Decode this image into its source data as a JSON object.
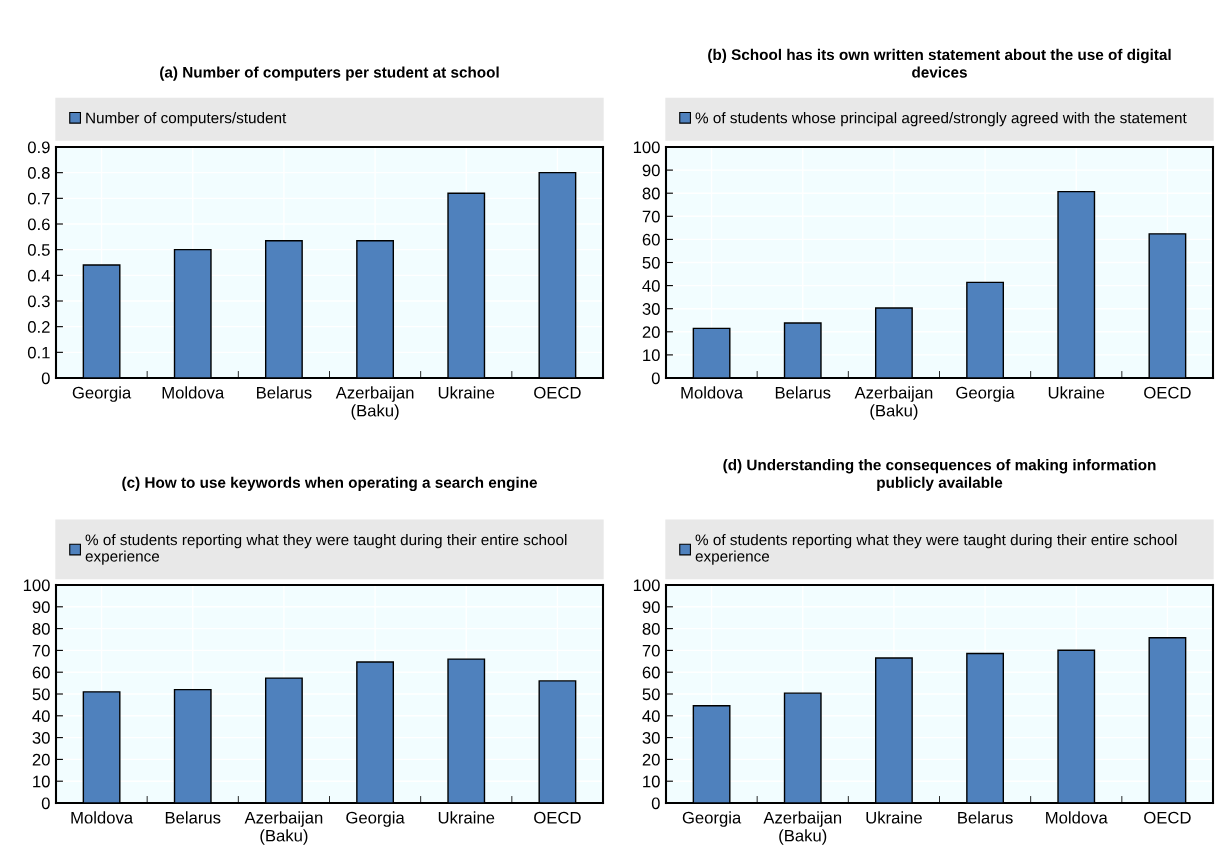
{
  "chart_data": [
    {
      "type": "bar",
      "title": "(a) Number of computers per student at school",
      "categories": [
        "Georgia",
        "Moldova",
        "Belarus",
        "Azerbaijan (Baku)",
        "Ukraine",
        "OECD"
      ],
      "series": [
        {
          "name": "Number of computers/student",
          "color": "#4f81bd",
          "values": [
            0.44,
            0.5,
            0.535,
            0.535,
            0.72,
            0.8
          ]
        }
      ],
      "ylim": [
        0,
        0.9
      ],
      "yticks": [
        0,
        0.1,
        0.2,
        0.3,
        0.4,
        0.5,
        0.6,
        0.7,
        0.8,
        0.9
      ],
      "grid": true,
      "legend": "top"
    },
    {
      "type": "bar",
      "title": "(b) School has its own written statement about the use of digital devices",
      "categories": [
        "Moldova",
        "Belarus",
        "Azerbaijan (Baku)",
        "Georgia",
        "Ukraine",
        "OECD"
      ],
      "series": [
        {
          "name": "% of students whose principal agreed/strongly agreed with the statement",
          "color": "#4f81bd",
          "values": [
            21.5,
            23.8,
            30.3,
            41.4,
            80.7,
            62.4
          ]
        }
      ],
      "ylim": [
        0,
        100
      ],
      "yticks": [
        0,
        10,
        20,
        30,
        40,
        50,
        60,
        70,
        80,
        90,
        100
      ],
      "grid": true,
      "legend": "top"
    },
    {
      "type": "bar",
      "title": "(c) How to use keywords when operating a search engine",
      "categories": [
        "Moldova",
        "Belarus",
        "Azerbaijan (Baku)",
        "Georgia",
        "Ukraine",
        "OECD"
      ],
      "series": [
        {
          "name": "% of students reporting what they were taught during their entire school experience",
          "color": "#4f81bd",
          "values": [
            51.0,
            52.0,
            57.3,
            64.7,
            66.0,
            56.0
          ]
        }
      ],
      "ylim": [
        0,
        100
      ],
      "yticks": [
        0,
        10,
        20,
        30,
        40,
        50,
        60,
        70,
        80,
        90,
        100
      ],
      "grid": true,
      "legend": "top"
    },
    {
      "type": "bar",
      "title": "(d) Understanding the consequences of making information publicly available",
      "categories": [
        "Georgia",
        "Azerbaijan (Baku)",
        "Ukraine",
        "Belarus",
        "Moldova",
        "OECD"
      ],
      "series": [
        {
          "name": "% of students reporting what they were taught during their entire school experience",
          "color": "#4f81bd",
          "values": [
            44.6,
            50.4,
            66.5,
            68.6,
            70.1,
            75.8
          ]
        }
      ],
      "ylim": [
        0,
        100
      ],
      "yticks": [
        0,
        10,
        20,
        30,
        40,
        50,
        60,
        70,
        80,
        90,
        100
      ],
      "grid": true,
      "legend": "top"
    }
  ]
}
